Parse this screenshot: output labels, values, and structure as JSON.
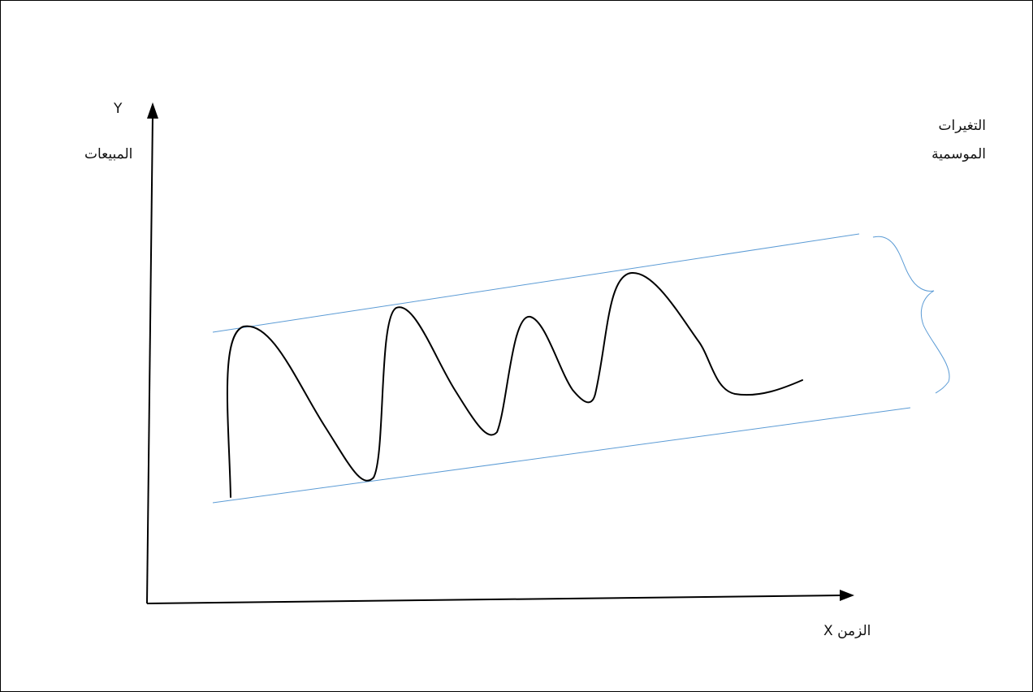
{
  "labels": {
    "y_letter": "Y",
    "y_label": "المبيعات",
    "x_label": "X الزمن",
    "seasonal_line1": "التغيرات",
    "seasonal_line2": "الموسمية"
  },
  "colors": {
    "axis": "#000000",
    "curve": "#000000",
    "band": "#5b9bd5",
    "brace": "#5b9bd5"
  }
}
